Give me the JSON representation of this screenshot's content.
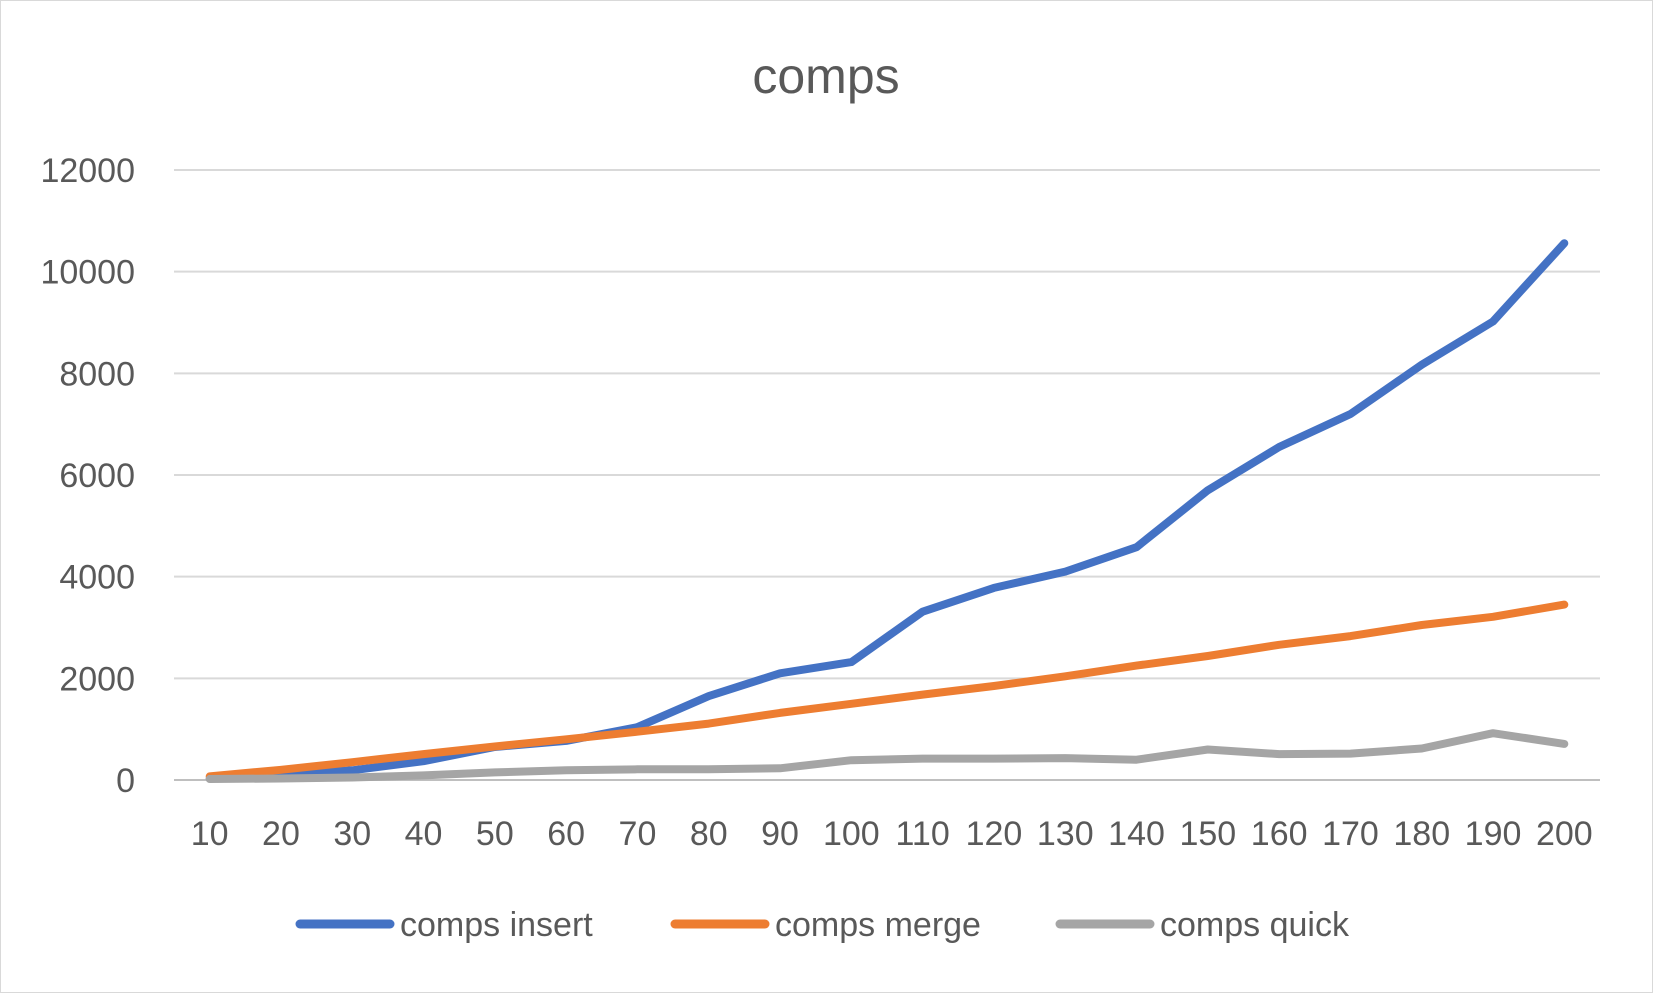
{
  "chart_data": {
    "type": "line",
    "title": "comps",
    "xlabel": "",
    "ylabel": "",
    "x": [
      10,
      20,
      30,
      40,
      50,
      60,
      70,
      80,
      90,
      100,
      110,
      120,
      130,
      140,
      150,
      160,
      170,
      180,
      190,
      200
    ],
    "x_tick_labels": [
      "10",
      "20",
      "30",
      "40",
      "50",
      "60",
      "70",
      "80",
      "90",
      "100",
      "110",
      "120",
      "130",
      "140",
      "150",
      "160",
      "170",
      "180",
      "190",
      "200"
    ],
    "ylim": [
      0,
      12000
    ],
    "y_ticks": [
      0,
      2000,
      4000,
      6000,
      8000,
      10000,
      12000
    ],
    "y_tick_labels": [
      "0",
      "2000",
      "4000",
      "6000",
      "8000",
      "10000",
      "12000"
    ],
    "grid": true,
    "legend_position": "bottom",
    "series": [
      {
        "name": "comps insert",
        "color": "#4472c4",
        "values": [
          30,
          90,
          190,
          370,
          650,
          770,
          1040,
          1650,
          2100,
          2320,
          3310,
          3780,
          4100,
          4580,
          5700,
          6550,
          7200,
          8170,
          9020,
          10560
        ]
      },
      {
        "name": "comps merge",
        "color": "#ed7d31",
        "values": [
          70,
          200,
          350,
          510,
          660,
          800,
          950,
          1110,
          1320,
          1500,
          1680,
          1850,
          2040,
          2250,
          2440,
          2660,
          2830,
          3050,
          3210,
          3450
        ]
      },
      {
        "name": "comps quick",
        "color": "#a5a5a5",
        "values": [
          20,
          30,
          50,
          90,
          150,
          190,
          210,
          210,
          230,
          390,
          420,
          420,
          430,
          400,
          600,
          510,
          520,
          620,
          920,
          710
        ]
      }
    ]
  }
}
